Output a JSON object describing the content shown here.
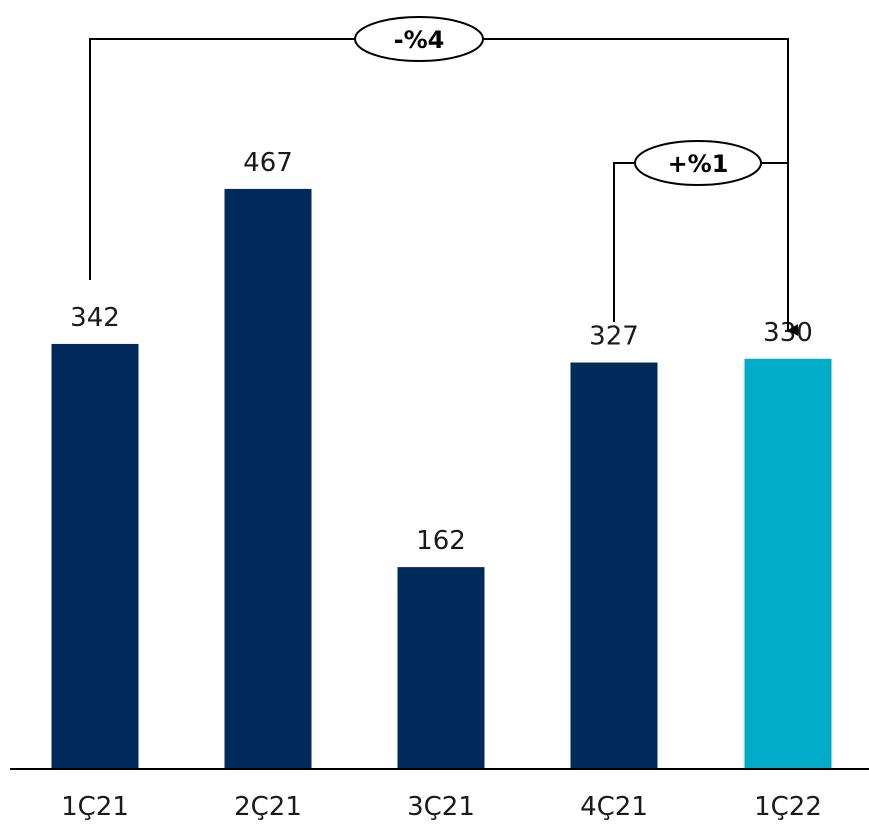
{
  "chart_data": {
    "type": "bar",
    "categories": [
      "1Ç21",
      "2Ç21",
      "3Ç21",
      "4Ç21",
      "1Ç22"
    ],
    "values": [
      342,
      467,
      162,
      327,
      330
    ],
    "value_labels": [
      "342",
      "467",
      "162",
      "327",
      "330"
    ],
    "title": "",
    "xlabel": "",
    "ylabel": "",
    "ylim": [
      0,
      500
    ],
    "grid": false,
    "colors": {
      "default": "#012a5c",
      "highlight": "#00acc8"
    },
    "highlight_index": 4,
    "annotations": [
      {
        "text": "-%4",
        "from_category": "1Ç21",
        "to_category": "1Ç22"
      },
      {
        "text": "+%1",
        "from_category": "4Ç21",
        "to_category": "1Ç22"
      }
    ]
  }
}
